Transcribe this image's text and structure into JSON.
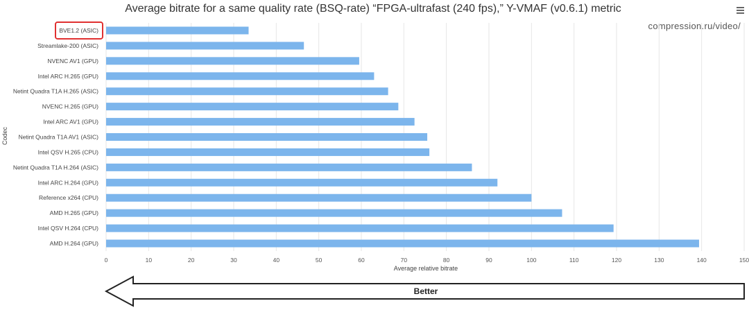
{
  "chart_data": {
    "type": "bar",
    "orientation": "horizontal",
    "title": "Average bitrate for a same quality rate (BSQ-rate) “FPGA-ultrafast (240 fps),” Y-VMAF (v0.6.1) metric",
    "xlabel": "Average relative bitrate",
    "ylabel": "Codec",
    "xlim": [
      0,
      150
    ],
    "xticks": [
      0,
      10,
      20,
      30,
      40,
      50,
      60,
      70,
      80,
      90,
      100,
      110,
      120,
      130,
      140,
      150
    ],
    "grid": true,
    "color": "#7cb5ec",
    "highlighted_category": "BVE1.2 (ASIC)",
    "highlight_color": "#e03030",
    "categories": [
      "BVE1.2 (ASIC)",
      "Streamlake-200 (ASIC)",
      "NVENC AV1 (GPU)",
      "Intel ARC H.265 (GPU)",
      "Netint Quadra T1A H.265 (ASIC)",
      "NVENC H.265 (GPU)",
      "Intel ARC AV1 (GPU)",
      "Netint Quadra T1A AV1 (ASIC)",
      "Intel QSV H.265 (CPU)",
      "Netint Quadra T1A H.264 (ASIC)",
      "Intel ARC H.264 (GPU)",
      "Reference x264 (CPU)",
      "AMD H.265 (GPU)",
      "Intel QSV H.264 (CPU)",
      "AMD H.264 (GPU)"
    ],
    "values": [
      33.5,
      46.5,
      59.5,
      63,
      66.3,
      68.7,
      72.5,
      75.5,
      76,
      86,
      92,
      100,
      107.2,
      119.3,
      139.4
    ]
  },
  "watermark": "compression.ru/video/",
  "menu_icon": "hamburger-menu-icon",
  "arrow": {
    "label": "Better",
    "direction": "left"
  }
}
